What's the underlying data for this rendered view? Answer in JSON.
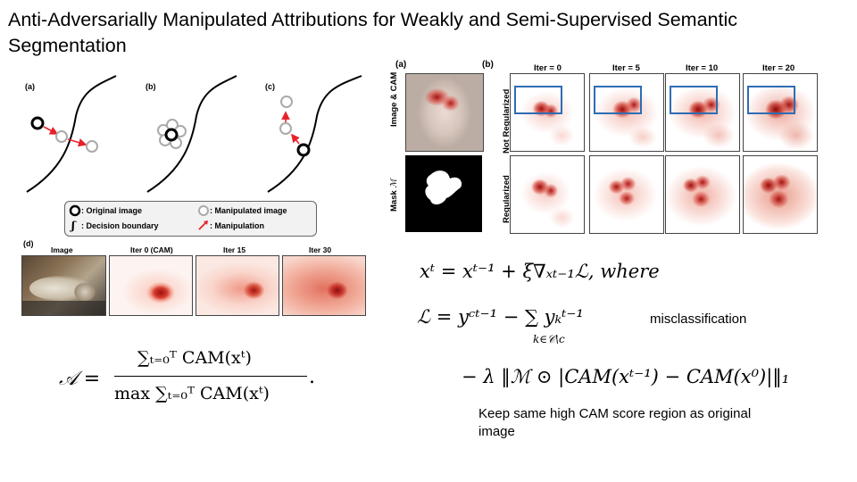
{
  "title": "Anti-Adversarially Manipulated Attributions for Weakly and Semi-Supervised Semantic Segmentation",
  "left_figure": {
    "panel_labels": [
      "(a)",
      "(b)",
      "(c)",
      "(d)"
    ],
    "legend": {
      "original_image": ": Original image",
      "decision_boundary": ": Decision boundary",
      "manipulated_image": ": Manipulated image",
      "manipulation": ": Manipulation"
    },
    "row_d": {
      "titles": [
        "Image",
        "Iter 0 (CAM)",
        "Iter 15",
        "Iter 30"
      ]
    }
  },
  "right_figure": {
    "panel_a_label": "(a)",
    "panel_b_label": "(b)",
    "row_labels_a": [
      "Image & CAM",
      "Mask"
    ],
    "mask_symbol": "ℳ",
    "row_labels_b": [
      "Not Regularized",
      "Regularized"
    ],
    "iter_titles": [
      "Iter = 0",
      "Iter = 5",
      "Iter = 10",
      "Iter = 20"
    ]
  },
  "equations": {
    "update": "xᵗ = xᵗ⁻¹ + ξ∇ₓₜ₋₁ℒ,  where",
    "loss_line1": "ℒ = yᶜᵗ⁻¹ − ∑ yₖᵗ⁻¹",
    "loss_sum_sub": "k∈𝒞\\c",
    "loss_line2": "− λ ‖ℳ ⊙ |CAM(xᵗ⁻¹) − CAM(x⁰)|‖₁",
    "attribution_lhs": "𝒜 =",
    "attribution_num": "∑ₜ₌₀ᵀ CAM(xᵗ)",
    "attribution_den": "max ∑ₜ₌₀ᵀ CAM(xᵗ)",
    "attribution_tail": "."
  },
  "notes": {
    "misclassification": "misclassification",
    "keep_region": "Keep same high CAM score region as original image"
  },
  "colors": {
    "manipulation_arrow": "#e8212a",
    "highlight_box": "#2e6db4",
    "heat_dark": "#b01818"
  }
}
